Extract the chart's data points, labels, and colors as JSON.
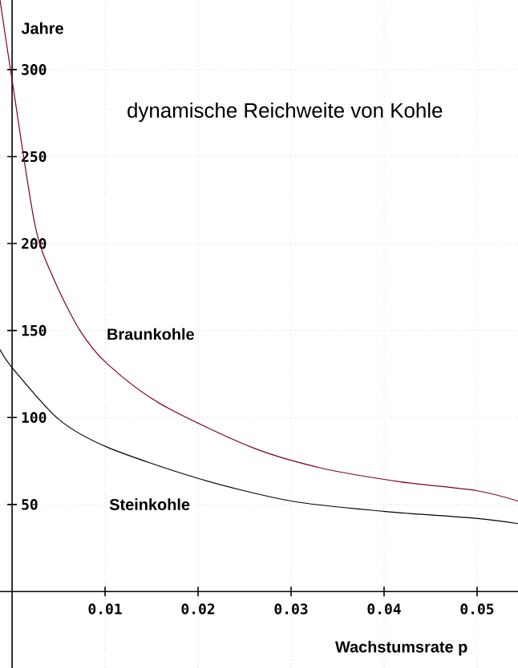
{
  "chart_data": {
    "type": "line",
    "title": "dynamische Reichweite von Kohle",
    "xlabel": "Wachstumsrate p",
    "ylabel": "Jahre",
    "xlim": [
      -0.0013,
      0.0544
    ],
    "ylim": [
      -44,
      340
    ],
    "xticks": [
      0.01,
      0.02,
      0.03,
      0.04,
      0.05
    ],
    "yticks": [
      50,
      100,
      150,
      200,
      250,
      300
    ],
    "grid": true,
    "legend": false,
    "marker": "none",
    "line_style": "solid",
    "series": [
      {
        "name": "Braunkohle",
        "color": "#800020",
        "x": [
          -0.0013,
          0,
          0.00245,
          0.00445,
          0.0073,
          0.0102,
          0.0159,
          0.0257,
          0.0332,
          0.0418,
          0.0499,
          0.0544
        ],
        "values": [
          340,
          294,
          211,
          180,
          150,
          131,
          108,
          83,
          71,
          63,
          58,
          52
        ]
      },
      {
        "name": "Steinkohle",
        "color": "#000000",
        "x": [
          -0.0013,
          0.0001,
          0.005,
          0.0102,
          0.02,
          0.03,
          0.0401,
          0.0499,
          0.0544
        ],
        "values": [
          139,
          128,
          99,
          83,
          65,
          52,
          46,
          42,
          39
        ]
      }
    ]
  }
}
